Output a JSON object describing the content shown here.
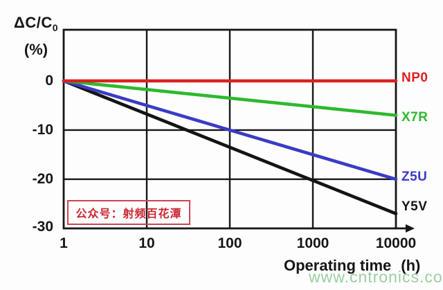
{
  "chart_data": {
    "type": "line",
    "title": "",
    "xlabel": "Operating time",
    "xlabel_unit": "(h)",
    "ylabel": "ΔC/C",
    "ylabel_sub": "0",
    "ylabel_unit": "(%)",
    "x_scale": "log",
    "x_range": [
      1,
      10000
    ],
    "y_range": [
      -30,
      10.4
    ],
    "x_ticks": [
      1,
      10,
      100,
      1000,
      10000
    ],
    "x_tick_labels": [
      "1",
      "10",
      "100",
      "1000",
      "10000"
    ],
    "y_ticks": [
      0,
      -10,
      -20,
      -30
    ],
    "y_tick_labels": [
      "0",
      "-10",
      "-20",
      "-30"
    ],
    "y_gridlines": [
      0,
      -10,
      -20
    ],
    "grid": true,
    "legend_position": "right-of-lines",
    "frame_color": "#161616",
    "series": [
      {
        "name": "NP0",
        "color": "#dc2020",
        "points": [
          [
            1,
            0
          ],
          [
            10000,
            0
          ]
        ]
      },
      {
        "name": "X7R",
        "color": "#2db92d",
        "points": [
          [
            1,
            0
          ],
          [
            10000,
            -7
          ]
        ]
      },
      {
        "name": "Z5U",
        "color": "#3b3bc4",
        "points": [
          [
            1,
            0
          ],
          [
            10000,
            -20
          ]
        ]
      },
      {
        "name": "Y5V",
        "color": "#141414",
        "points": [
          [
            1,
            0
          ],
          [
            10000,
            -27
          ]
        ]
      }
    ]
  },
  "overlays": {
    "wechat_box": {
      "text": "公众号：射频百花潭",
      "color": "#cc2633"
    },
    "watermark": {
      "text": "www.cntronics.com",
      "color": "#93cb9b"
    }
  }
}
